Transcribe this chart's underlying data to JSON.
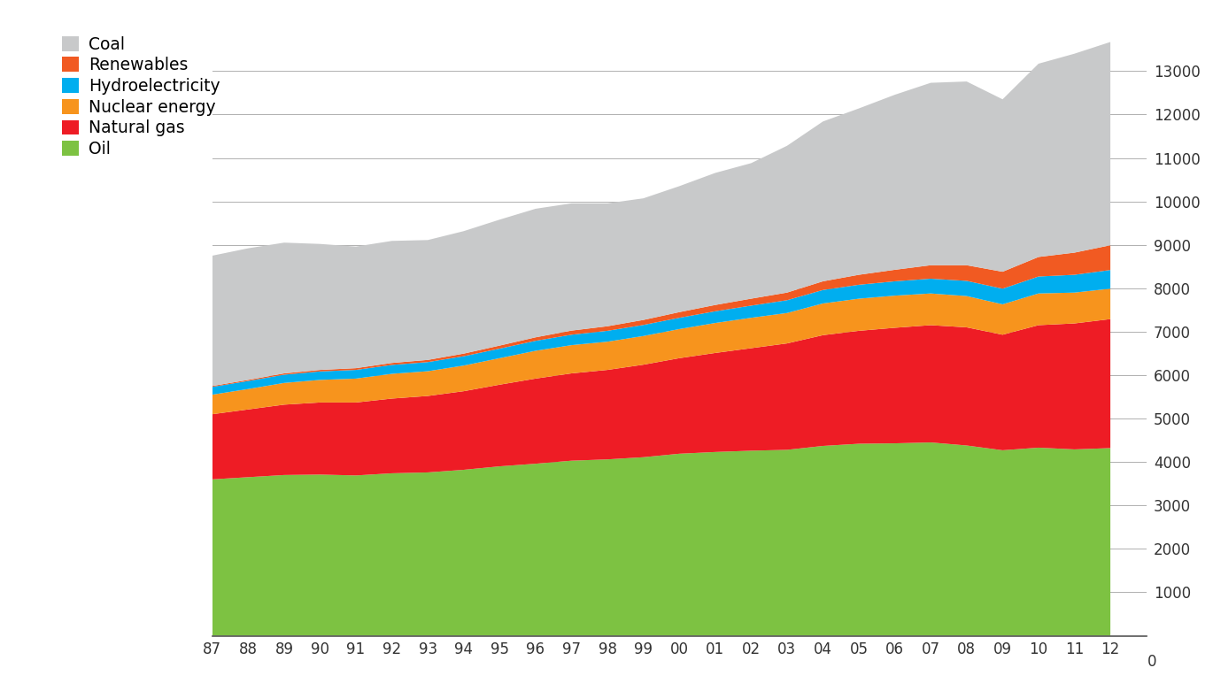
{
  "years": [
    1987,
    1988,
    1989,
    1990,
    1991,
    1992,
    1993,
    1994,
    1995,
    1996,
    1997,
    1998,
    1999,
    2000,
    2001,
    2002,
    2003,
    2004,
    2005,
    2006,
    2007,
    2008,
    2009,
    2010,
    2011,
    2012
  ],
  "oil": [
    3600,
    3650,
    3700,
    3710,
    3690,
    3740,
    3760,
    3820,
    3900,
    3960,
    4030,
    4060,
    4110,
    4190,
    4230,
    4260,
    4280,
    4370,
    4420,
    4430,
    4450,
    4380,
    4270,
    4330,
    4290,
    4320
  ],
  "natural_gas": [
    1500,
    1560,
    1620,
    1660,
    1680,
    1720,
    1760,
    1810,
    1880,
    1960,
    2010,
    2060,
    2130,
    2200,
    2280,
    2360,
    2450,
    2550,
    2600,
    2660,
    2700,
    2720,
    2660,
    2820,
    2900,
    2970
  ],
  "nuclear": [
    450,
    470,
    500,
    520,
    550,
    570,
    570,
    590,
    610,
    640,
    650,
    650,
    660,
    670,
    690,
    700,
    700,
    730,
    740,
    740,
    730,
    720,
    700,
    730,
    710,
    700
  ],
  "hydro": [
    180,
    185,
    190,
    195,
    200,
    205,
    210,
    215,
    220,
    230,
    240,
    250,
    255,
    260,
    270,
    280,
    295,
    310,
    320,
    330,
    340,
    350,
    360,
    390,
    410,
    430
  ],
  "renewables": [
    20,
    25,
    30,
    35,
    40,
    45,
    50,
    60,
    70,
    80,
    95,
    105,
    115,
    130,
    145,
    160,
    175,
    200,
    230,
    265,
    310,
    360,
    390,
    450,
    510,
    570
  ],
  "coal": [
    3000,
    3030,
    3010,
    2900,
    2800,
    2810,
    2760,
    2820,
    2900,
    2960,
    2930,
    2830,
    2800,
    2900,
    3040,
    3120,
    3380,
    3680,
    3830,
    4030,
    4200,
    4230,
    3970,
    4450,
    4580,
    4680
  ],
  "colors": {
    "oil": "#7dc242",
    "natural_gas": "#ee1c25",
    "nuclear": "#f7941d",
    "hydro": "#00aeef",
    "renewables": "#f15a22",
    "coal": "#c8c9ca"
  },
  "legend_labels": [
    "Coal",
    "Renewables",
    "Hydroelectricity",
    "Nuclear energy",
    "Natural gas",
    "Oil"
  ],
  "legend_colors": [
    "#c8c9ca",
    "#f15a22",
    "#00aeef",
    "#f7941d",
    "#ee1c25",
    "#7dc242"
  ],
  "yticks": [
    1000,
    2000,
    3000,
    4000,
    5000,
    6000,
    7000,
    8000,
    9000,
    10000,
    11000,
    12000,
    13000
  ],
  "background_color": "#ffffff",
  "grid_color": "#b0b0b0"
}
